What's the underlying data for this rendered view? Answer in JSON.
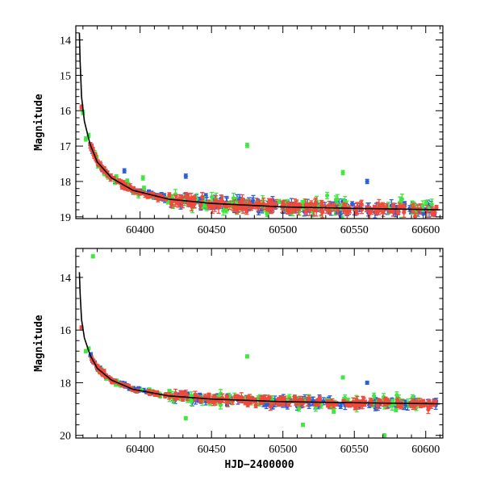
{
  "chart_data": [
    {
      "type": "scatter",
      "title": "",
      "xlabel": "",
      "ylabel": "Magnitude",
      "xlim": [
        60355,
        60612
      ],
      "ylim": [
        19.05,
        13.6
      ],
      "yticks": [
        14,
        15,
        16,
        17,
        18,
        19
      ],
      "xticks": [
        60400,
        60450,
        60500,
        60550,
        60600
      ],
      "fit_curve": {
        "color": "#000000",
        "points": [
          [
            60357.5,
            13.8
          ],
          [
            60358,
            14.6
          ],
          [
            60359,
            15.6
          ],
          [
            60361,
            16.3
          ],
          [
            60365,
            16.95
          ],
          [
            60370,
            17.45
          ],
          [
            60380,
            17.9
          ],
          [
            60395,
            18.25
          ],
          [
            60420,
            18.5
          ],
          [
            60450,
            18.62
          ],
          [
            60500,
            18.72
          ],
          [
            60550,
            18.76
          ],
          [
            60610,
            18.8
          ]
        ]
      },
      "series": [
        {
          "name": "blue",
          "color": "#2b5fd9"
        },
        {
          "name": "green",
          "color": "#3ee83e"
        },
        {
          "name": "red",
          "color": "#f24a3a"
        }
      ],
      "notable_points": [
        {
          "series": "red",
          "x": 60359,
          "y": 15.9
        },
        {
          "series": "green",
          "x": 60360,
          "y": 16.05
        },
        {
          "series": "green",
          "x": 60362,
          "y": 16.8
        },
        {
          "series": "green",
          "x": 60364,
          "y": 16.7
        },
        {
          "series": "green",
          "x": 60475,
          "y": 16.98
        },
        {
          "series": "green",
          "x": 60542,
          "y": 17.75
        },
        {
          "series": "blue",
          "x": 60432,
          "y": 17.85
        },
        {
          "series": "blue",
          "x": 60559,
          "y": 18.0
        },
        {
          "series": "blue",
          "x": 60389,
          "y": 17.7
        },
        {
          "series": "green",
          "x": 60402,
          "y": 17.9
        }
      ]
    },
    {
      "type": "scatter",
      "title": "",
      "xlabel": "HJD−2400000",
      "ylabel": "Magnitude",
      "xlim": [
        60355,
        60612
      ],
      "ylim": [
        20.1,
        12.9
      ],
      "yticks": [
        14,
        16,
        18,
        20
      ],
      "xticks": [
        60400,
        60450,
        60500,
        60550,
        60600
      ],
      "fit_curve": {
        "color": "#000000",
        "points": [
          [
            60357.5,
            13.8
          ],
          [
            60358,
            14.6
          ],
          [
            60359,
            15.6
          ],
          [
            60361,
            16.3
          ],
          [
            60365,
            16.95
          ],
          [
            60370,
            17.45
          ],
          [
            60380,
            17.9
          ],
          [
            60395,
            18.25
          ],
          [
            60420,
            18.5
          ],
          [
            60450,
            18.62
          ],
          [
            60500,
            18.72
          ],
          [
            60550,
            18.76
          ],
          [
            60610,
            18.8
          ]
        ]
      },
      "series": [
        {
          "name": "blue",
          "color": "#2b5fd9"
        },
        {
          "name": "green",
          "color": "#3ee83e"
        },
        {
          "name": "red",
          "color": "#f24a3a"
        }
      ],
      "notable_points": [
        {
          "series": "green",
          "x": 60367,
          "y": 13.2
        },
        {
          "series": "red",
          "x": 60359,
          "y": 15.9
        },
        {
          "series": "green",
          "x": 60362,
          "y": 16.8
        },
        {
          "series": "green",
          "x": 60364,
          "y": 16.7
        },
        {
          "series": "green",
          "x": 60475,
          "y": 17.0
        },
        {
          "series": "green",
          "x": 60542,
          "y": 17.8
        },
        {
          "series": "blue",
          "x": 60559,
          "y": 18.0
        },
        {
          "series": "green",
          "x": 60571,
          "y": 20.0
        },
        {
          "series": "green",
          "x": 60514,
          "y": 19.6
        },
        {
          "series": "green",
          "x": 60432,
          "y": 19.35
        }
      ]
    }
  ]
}
